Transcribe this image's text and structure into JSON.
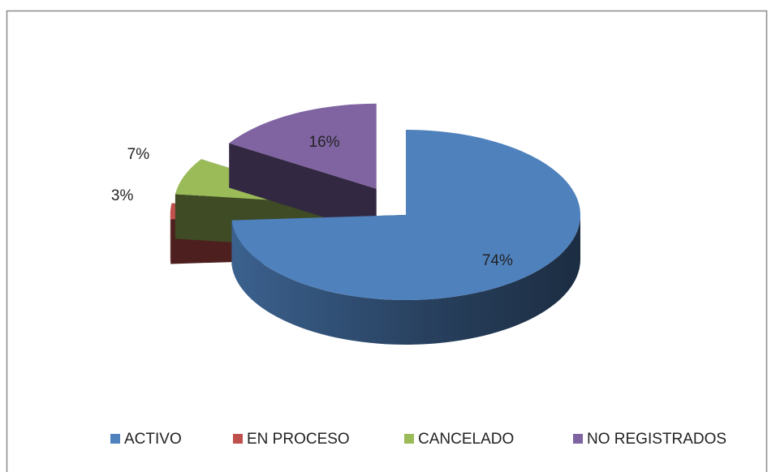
{
  "chart_data": {
    "type": "pie",
    "categories": [
      "ACTIVO",
      "EN PROCESO",
      "CANCELADO",
      "NO REGISTRADOS"
    ],
    "values": [
      74,
      3,
      7,
      16
    ],
    "value_labels": [
      "74%",
      "3%",
      "7%",
      "16%"
    ],
    "colors": [
      "#4f81bd",
      "#c0504d",
      "#9bbb59",
      "#8064a2"
    ],
    "legend": "bottom"
  }
}
